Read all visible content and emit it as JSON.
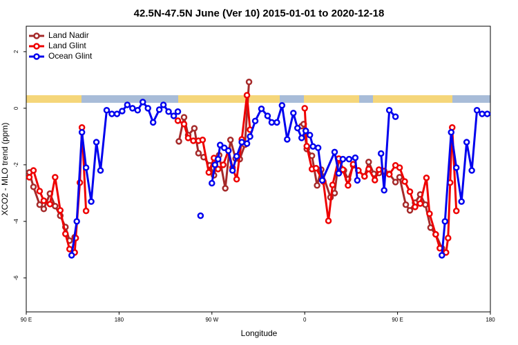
{
  "chart_data": {
    "type": "line",
    "title": "42.5N-47.5N June (Ver 10)   2015-01-01 to 2020-12-18",
    "xlabel": "Longitude",
    "ylabel": "XCO2 - MLO trend (ppm)",
    "xlim": [
      90,
      540
    ],
    "ylim": [
      -7.2,
      2.9
    ],
    "xticks": [
      {
        "value": 90,
        "label": "90 E"
      },
      180,
      {
        "value": 270,
        "label": "90 W"
      },
      {
        "value": 360,
        "label": "0"
      },
      {
        "value": 450,
        "label": "90 E"
      },
      {
        "value": 540,
        "label": "180"
      }
    ],
    "yticks": [
      2,
      0,
      -2,
      -4,
      -6
    ],
    "legend": "top-left",
    "series": [
      {
        "name": "Land Nadir",
        "color": "#a52a2a",
        "x": [
          93,
          97,
          103,
          107,
          113,
          118,
          123,
          128,
          132,
          137,
          null,
          238,
          243,
          247,
          253,
          257,
          262,
          268,
          272,
          277,
          283,
          288,
          293,
          297,
          302,
          306,
          null,
          357,
          359,
          362,
          367,
          372,
          376,
          385,
          389,
          393,
          398,
          402,
          407,
          412,
          418,
          422,
          427,
          432,
          437,
          442,
          448,
          452,
          458,
          462,
          467,
          472,
          477,
          482,
          487,
          493
        ],
        "values": [
          -2.27,
          -2.78,
          -3.41,
          -3.56,
          -3.02,
          -3.46,
          -3.8,
          -4.2,
          -4.68,
          -4.56,
          null,
          -1.17,
          -0.32,
          -0.95,
          -0.71,
          -1.59,
          -1.73,
          -2.02,
          -2.37,
          -1.66,
          -2.83,
          -1.12,
          -1.78,
          -1.8,
          -1.29,
          0.93,
          null,
          -0.63,
          -0.56,
          -1.44,
          -1.68,
          -2.73,
          -2.17,
          -3.15,
          -3.0,
          -1.8,
          -2.2,
          -2.51,
          -2.02,
          -2.2,
          -2.41,
          -1.9,
          -2.32,
          -2.29,
          -2.24,
          -2.32,
          -2.61,
          -2.44,
          -3.41,
          -3.61,
          -3.34,
          -3.05,
          -3.41,
          -4.22,
          -4.46,
          -4.95
        ]
      },
      {
        "name": "Land Glint",
        "color": "#ee0000",
        "x": [
          93,
          97,
          103,
          107,
          113,
          118,
          123,
          128,
          132,
          137,
          138,
          142,
          144,
          148,
          null,
          237,
          243,
          247,
          252,
          257,
          261,
          267,
          272,
          276,
          281,
          286,
          290,
          294,
          299,
          304,
          307,
          null,
          360,
          362,
          367,
          371,
          378,
          383,
          387,
          393,
          397,
          402,
          407,
          412,
          418,
          422,
          428,
          432,
          437,
          442,
          448,
          452,
          457,
          462,
          467,
          472,
          478,
          481,
          487,
          491,
          497,
          499,
          501,
          503,
          507
        ],
        "values": [
          -2.44,
          -2.2,
          -2.93,
          -3.27,
          -3.39,
          -2.44,
          -3.61,
          -4.44,
          -4.98,
          -5.1,
          -4.59,
          -2.63,
          -0.68,
          -3.63,
          null,
          -0.44,
          -0.56,
          -1.05,
          -1.15,
          -1.15,
          -1.12,
          -2.27,
          -1.76,
          -2.15,
          -2.0,
          -1.49,
          -2.1,
          -2.51,
          -1.1,
          0.46,
          -0.76,
          null,
          0,
          -1.34,
          -2.15,
          -2.12,
          -2.59,
          -3.98,
          -2.71,
          -1.78,
          -2.17,
          -2.73,
          -1.98,
          -2.2,
          -2.41,
          -2.15,
          -2.54,
          -2.17,
          -2.22,
          -2.34,
          -2.02,
          -2.1,
          -2.59,
          -2.95,
          -3.49,
          -3.37,
          -2.46,
          -3.73,
          -4.46,
          -4.95,
          -5.1,
          -4.59,
          -2.63,
          -0.68,
          -3.63
        ]
      },
      {
        "name": "Ocean Glint",
        "color": "#0000ee",
        "x": [
          134,
          139,
          144,
          148,
          153,
          158,
          162,
          168,
          173,
          178,
          183,
          188,
          193,
          198,
          203,
          208,
          213,
          219,
          223,
          228,
          233,
          237,
          null,
          259,
          null,
          270,
          273,
          276,
          278,
          282,
          286,
          290,
          294,
          299,
          304,
          307,
          312,
          318,
          324,
          328,
          333,
          338,
          343,
          349,
          353,
          357,
          361,
          365,
          368,
          373,
          377,
          389,
          393,
          397,
          403,
          409,
          411,
          null,
          434,
          437,
          442,
          448,
          null,
          493,
          496,
          502,
          507,
          512,
          517,
          522,
          527,
          532,
          537
        ],
        "values": [
          -5.2,
          -4.0,
          -0.85,
          -2.1,
          -3.3,
          -1.2,
          -2.2,
          -0.07,
          -0.2,
          -0.2,
          -0.1,
          0.12,
          0,
          -0.07,
          0.22,
          0,
          -0.5,
          -0.05,
          0.12,
          -0.12,
          -0.27,
          -0.12,
          null,
          -3.8,
          null,
          -2.65,
          -2.0,
          -1.8,
          -1.3,
          -1.4,
          -1.5,
          -2.2,
          -1.7,
          -1.2,
          -1.25,
          -1.0,
          -0.45,
          -0.02,
          -0.27,
          -0.5,
          -0.5,
          0.1,
          -1.1,
          -0.17,
          -0.7,
          -1.05,
          -0.8,
          -0.95,
          -1.35,
          -1.4,
          -2.55,
          -1.55,
          -2.3,
          -1.8,
          -1.8,
          -1.75,
          -2.55,
          null,
          -1.6,
          -2.9,
          -0.07,
          -0.3,
          null,
          -5.2,
          -4.0,
          -0.85,
          -2.1,
          -3.3,
          -1.2,
          -2.2,
          -0.07,
          -0.2,
          -0.2
        ]
      }
    ]
  }
}
